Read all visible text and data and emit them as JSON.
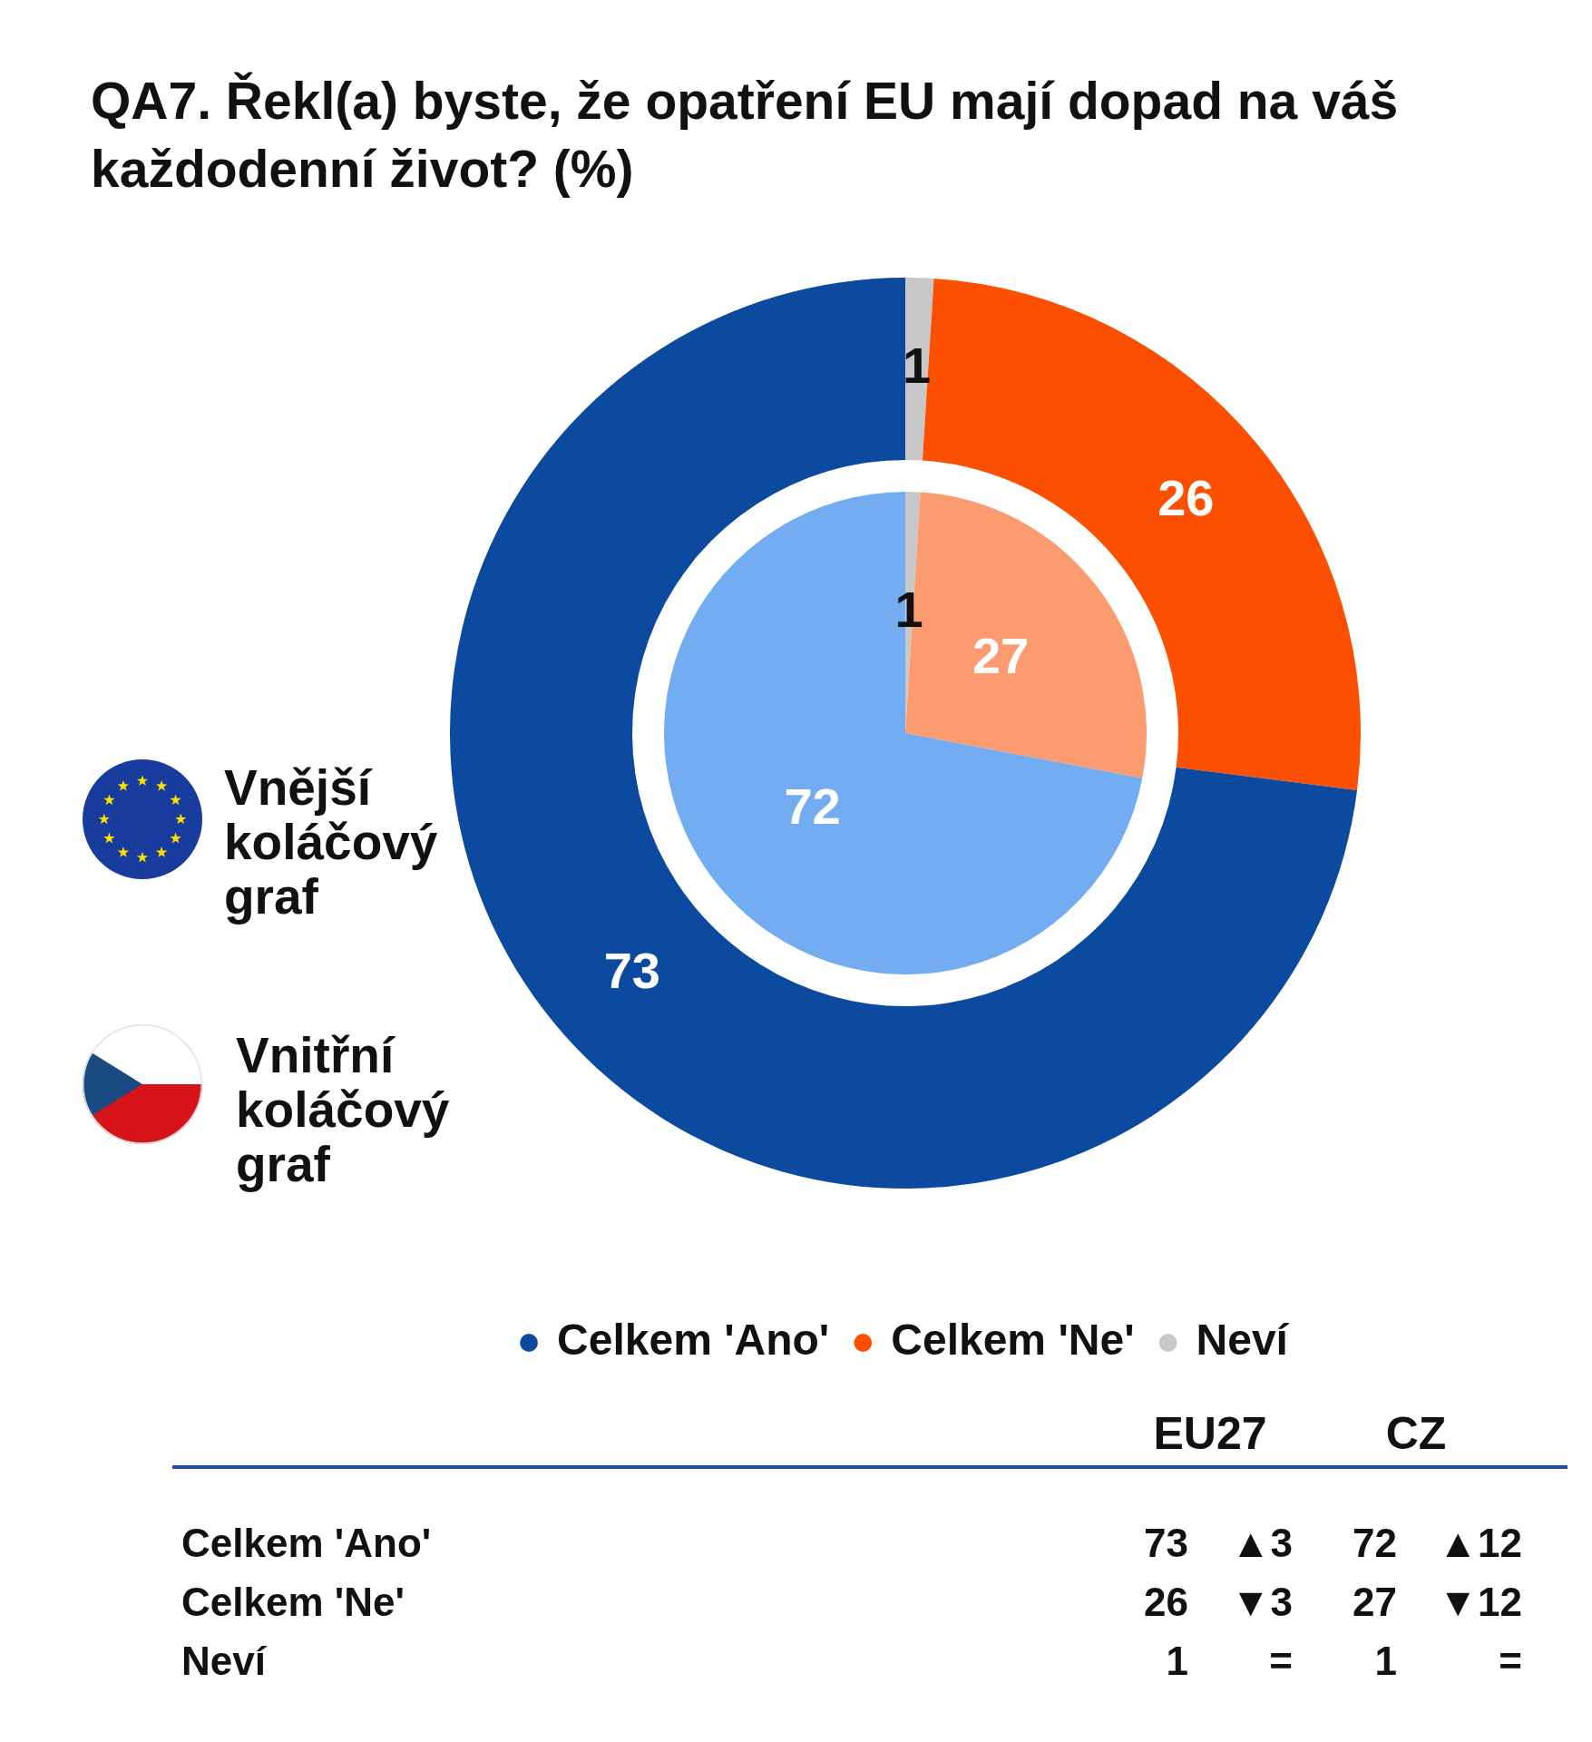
{
  "chart_data": [
    {
      "type": "donut",
      "title": "QA7. Řekl(a) byste, že opatření EU mají dopad na váš každodenní život? (%)",
      "categories": [
        "Celkem 'Ano'",
        "Celkem 'Ne'",
        "Neví"
      ],
      "series": [
        {
          "type": "donut",
          "colors": [
            "#0c4aa0",
            "#fc5000",
            "#c8c8c8"
          ],
          "values": [
            73,
            26,
            1
          ]
        },
        {
          "type": "pie",
          "colors": [
            "#74acf2",
            "#fd9b70",
            "#c8c8c8"
          ],
          "values": [
            72,
            27,
            1
          ]
        }
      ],
      "data_labels": true,
      "legend": "bottom",
      "annotations": [
        "Vnější koláčový graf",
        "Vnitřní koláčový graf"
      ]
    },
    {
      "type": "other",
      "categories": [
        "Celkem 'Ano'",
        "Celkem 'Ne'",
        "Neví"
      ],
      "series": [
        {
          "name": "EU27",
          "values": [
            73,
            26,
            1
          ]
        },
        {
          "name": "CZ",
          "values": [
            72,
            27,
            1
          ]
        }
      ],
      "data_labels": true,
      "annotations": [
        "▲3",
        "▼3",
        "=",
        "▲12",
        "▼12",
        "="
      ]
    }
  ]
}
